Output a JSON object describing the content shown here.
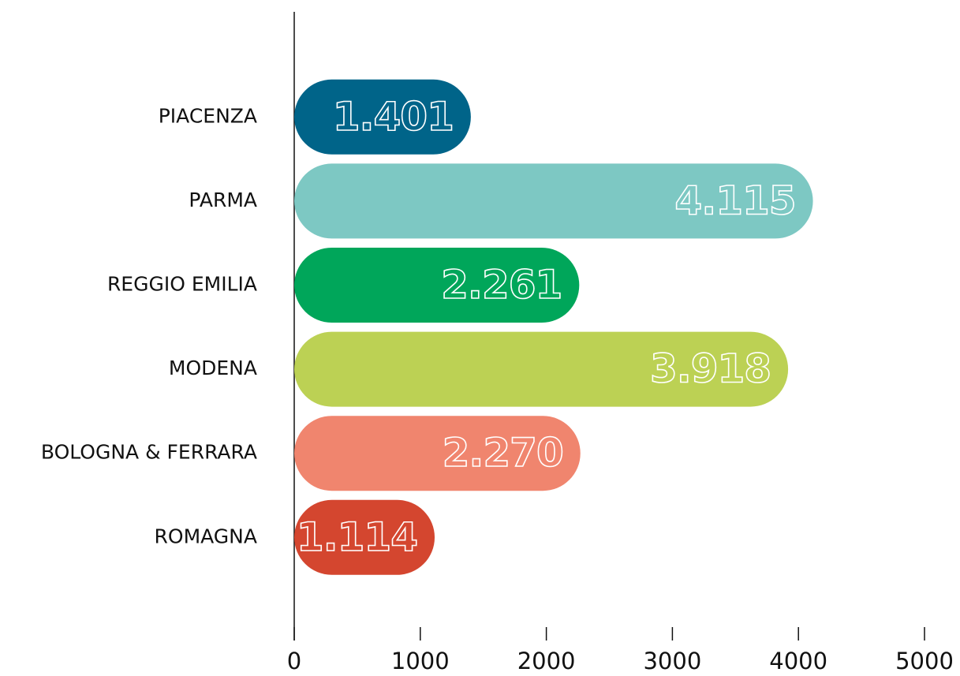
{
  "chart_data": {
    "type": "bar",
    "orientation": "horizontal",
    "categories": [
      "PIACENZA",
      "PARMA",
      "REGGIO EMILIA",
      "MODENA",
      "BOLOGNA & FERRARA",
      "ROMAGNA"
    ],
    "values": [
      1401,
      4115,
      2261,
      3918,
      2270,
      1114
    ],
    "value_labels": [
      "1.401",
      "4.115",
      "2.261",
      "3.918",
      "2.270",
      "1.114"
    ],
    "colors": [
      "#006489",
      "#7dc8c3",
      "#00a65a",
      "#bcd154",
      "#f0856e",
      "#d4462f"
    ],
    "xlim": [
      0,
      5000
    ],
    "xticks": [
      0,
      1000,
      2000,
      3000,
      4000,
      5000
    ],
    "grid": false
  }
}
